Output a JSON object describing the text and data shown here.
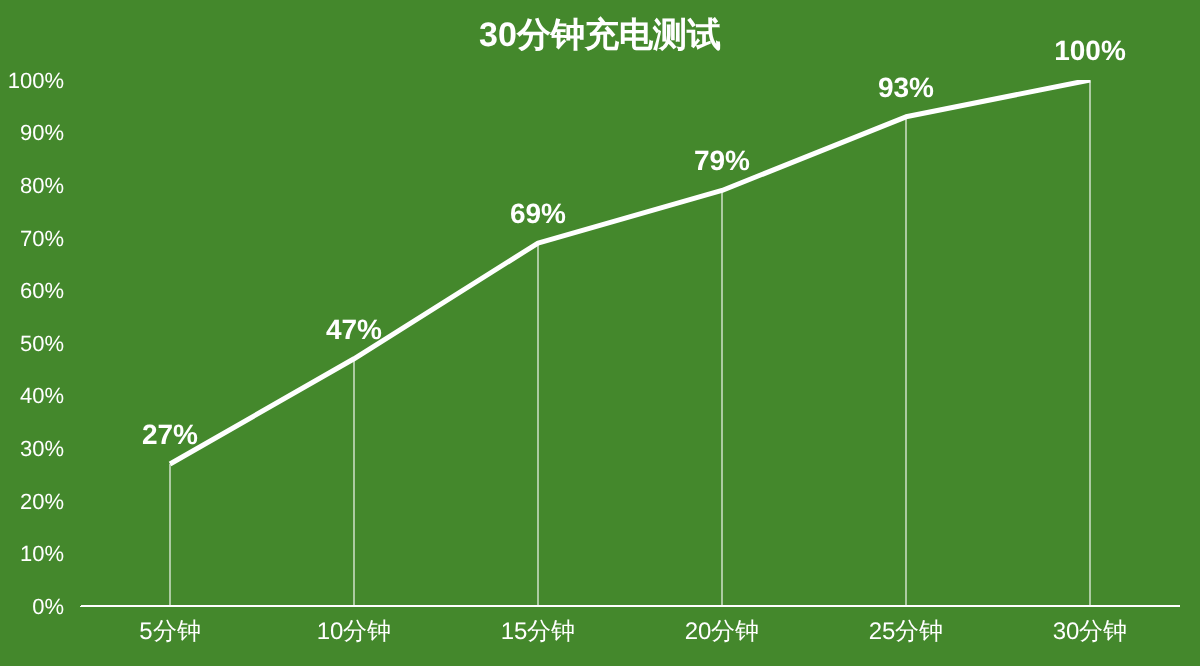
{
  "chart_data": {
    "type": "line",
    "title": "30分钟充电测试",
    "categories": [
      "5分钟",
      "10分钟",
      "15分钟",
      "20分钟",
      "25分钟",
      "30分钟"
    ],
    "series": [
      {
        "color": "#ffffff",
        "values": [
          27,
          47,
          69,
          79,
          93,
          100
        ],
        "value_labels": [
          "27%",
          "47%",
          "69%",
          "79%",
          "93%",
          "100%"
        ]
      }
    ],
    "ylim": [
      0,
      100
    ],
    "yticks": [
      {
        "value": 0,
        "label": "0%"
      },
      {
        "value": 10,
        "label": "10%"
      },
      {
        "value": 20,
        "label": "20%"
      },
      {
        "value": 30,
        "label": "30%"
      },
      {
        "value": 40,
        "label": "40%"
      },
      {
        "value": 50,
        "label": "50%"
      },
      {
        "value": 60,
        "label": "60%"
      },
      {
        "value": 70,
        "label": "70%"
      },
      {
        "value": 80,
        "label": "80%"
      },
      {
        "value": 90,
        "label": "90%"
      },
      {
        "value": 100,
        "label": "100%"
      }
    ],
    "grid": "x",
    "legend": false,
    "marker": "none",
    "line_style": "solid"
  }
}
